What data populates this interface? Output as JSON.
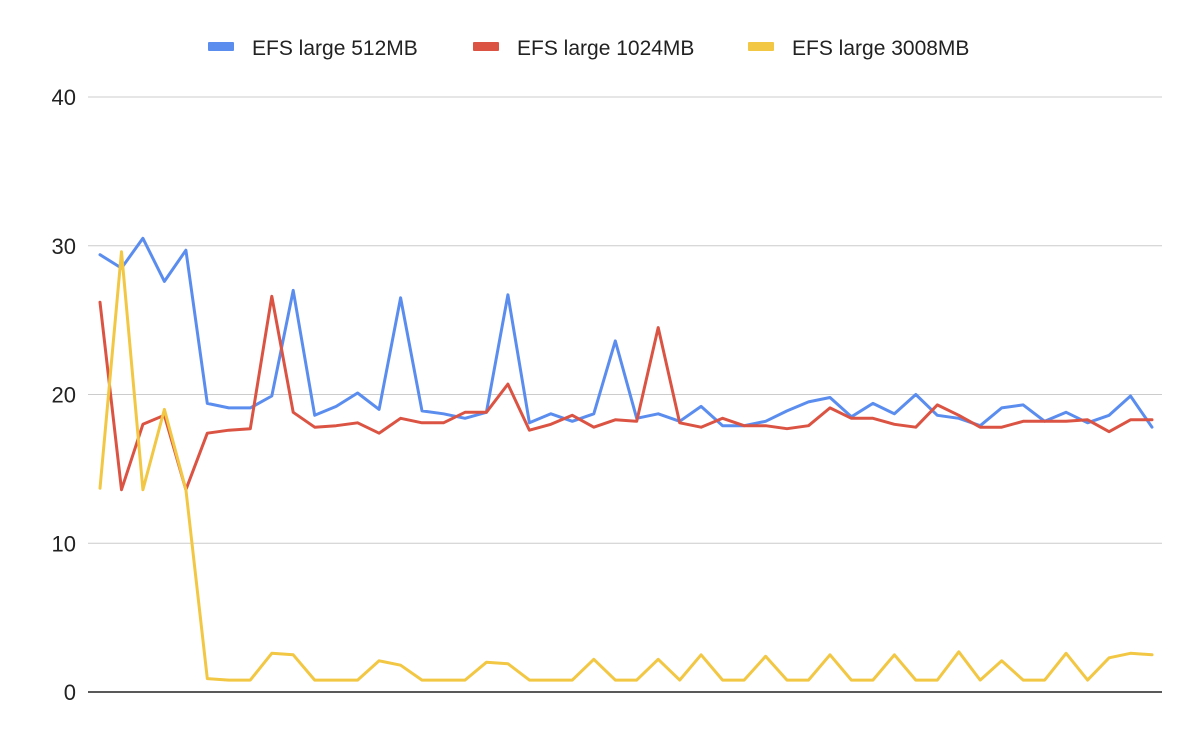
{
  "chart_data": {
    "type": "line",
    "title": "",
    "xlabel": "",
    "ylabel": "",
    "ylim": [
      0,
      40
    ],
    "yticks": [
      0,
      10,
      20,
      30,
      40
    ],
    "grid": true,
    "legend_position": "top",
    "colors": {
      "EFS large 512MB": "#5B8DEF",
      "EFS large 1024MB": "#DB5443",
      "EFS large 3008MB": "#F2C744",
      "grid": "#cccccc",
      "axis": "#222222",
      "text": "#222222"
    },
    "series": [
      {
        "name": "EFS large 512MB",
        "values": [
          29.4,
          28.5,
          30.5,
          27.6,
          29.7,
          19.4,
          19.1,
          19.1,
          19.9,
          27.0,
          18.6,
          19.2,
          20.1,
          19.0,
          26.5,
          18.9,
          18.7,
          18.4,
          18.8,
          26.7,
          18.1,
          18.7,
          18.2,
          18.7,
          23.6,
          18.4,
          18.7,
          18.2,
          19.2,
          17.9,
          17.9,
          18.2,
          18.9,
          19.5,
          19.8,
          18.5,
          19.4,
          18.7,
          20.0,
          18.6,
          18.4,
          17.9,
          19.1,
          19.3,
          18.2,
          18.8,
          18.1,
          18.6,
          19.9,
          17.8
        ]
      },
      {
        "name": "EFS large 1024MB",
        "values": [
          26.2,
          13.6,
          18.0,
          18.6,
          13.6,
          17.4,
          17.6,
          17.7,
          26.6,
          18.8,
          17.8,
          17.9,
          18.1,
          17.4,
          18.4,
          18.1,
          18.1,
          18.8,
          18.8,
          20.7,
          17.6,
          18.0,
          18.6,
          17.8,
          18.3,
          18.2,
          24.5,
          18.1,
          17.8,
          18.4,
          17.9,
          17.9,
          17.7,
          17.9,
          19.1,
          18.4,
          18.4,
          18.0,
          17.8,
          19.3,
          18.6,
          17.8,
          17.8,
          18.2,
          18.2,
          18.2,
          18.3,
          17.5,
          18.3,
          18.3
        ]
      },
      {
        "name": "EFS large 3008MB",
        "values": [
          13.7,
          29.6,
          13.6,
          19.0,
          13.6,
          0.9,
          0.8,
          0.8,
          2.6,
          2.5,
          0.8,
          0.8,
          0.8,
          2.1,
          1.8,
          0.8,
          0.8,
          0.8,
          2.0,
          1.9,
          0.8,
          0.8,
          0.8,
          2.2,
          0.8,
          0.8,
          2.2,
          0.8,
          2.5,
          0.8,
          0.8,
          2.4,
          0.8,
          0.8,
          2.5,
          0.8,
          0.8,
          2.5,
          0.8,
          0.8,
          2.7,
          0.8,
          2.1,
          0.8,
          0.8,
          2.6,
          0.8,
          2.3,
          2.6,
          2.5
        ]
      }
    ]
  }
}
